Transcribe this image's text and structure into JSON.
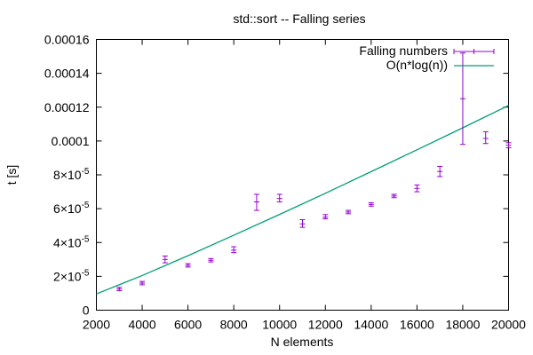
{
  "chart_data": {
    "type": "scatter",
    "title": "std::sort -- Falling series",
    "xlabel": "N elements",
    "ylabel": "t [s]",
    "xlim": [
      2000,
      20000
    ],
    "ylim": [
      0,
      0.00016
    ],
    "grid": false,
    "legend_position": "top-right",
    "x_ticks": [
      {
        "value": 2000,
        "label": "2000"
      },
      {
        "value": 4000,
        "label": "4000"
      },
      {
        "value": 6000,
        "label": "6000"
      },
      {
        "value": 8000,
        "label": "8000"
      },
      {
        "value": 10000,
        "label": "10000"
      },
      {
        "value": 12000,
        "label": "12000"
      },
      {
        "value": 14000,
        "label": "14000"
      },
      {
        "value": 16000,
        "label": "16000"
      },
      {
        "value": 18000,
        "label": "18000"
      },
      {
        "value": 20000,
        "label": "20000"
      }
    ],
    "y_ticks": [
      {
        "value": 0,
        "label": "0",
        "exp": ""
      },
      {
        "value": 2e-05,
        "label": "2×10",
        "exp": "-5"
      },
      {
        "value": 4e-05,
        "label": "4×10",
        "exp": "-5"
      },
      {
        "value": 6e-05,
        "label": "6×10",
        "exp": "-5"
      },
      {
        "value": 8e-05,
        "label": "8×10",
        "exp": "-5"
      },
      {
        "value": 0.0001,
        "label": "0.0001",
        "exp": ""
      },
      {
        "value": 0.00012,
        "label": "0.00012",
        "exp": ""
      },
      {
        "value": 0.00014,
        "label": "0.00014",
        "exp": ""
      },
      {
        "value": 0.00016,
        "label": "0.00016",
        "exp": ""
      }
    ],
    "series": [
      {
        "name": "Falling numbers",
        "kind": "errorbars",
        "color": "#9400d3",
        "points": [
          {
            "x": 3000,
            "y": 1.25e-05,
            "ylow": 1.15e-05,
            "yhigh": 1.35e-05
          },
          {
            "x": 4000,
            "y": 1.6e-05,
            "ylow": 1.5e-05,
            "yhigh": 1.7e-05
          },
          {
            "x": 5000,
            "y": 3e-05,
            "ylow": 2.8e-05,
            "yhigh": 3.2e-05
          },
          {
            "x": 6000,
            "y": 2.65e-05,
            "ylow": 2.55e-05,
            "yhigh": 2.75e-05
          },
          {
            "x": 7000,
            "y": 2.95e-05,
            "ylow": 2.85e-05,
            "yhigh": 3.05e-05
          },
          {
            "x": 8000,
            "y": 3.55e-05,
            "ylow": 3.4e-05,
            "yhigh": 3.75e-05
          },
          {
            "x": 9000,
            "y": 6.4e-05,
            "ylow": 5.9e-05,
            "yhigh": 6.85e-05
          },
          {
            "x": 10000,
            "y": 6.6e-05,
            "ylow": 6.4e-05,
            "yhigh": 6.85e-05
          },
          {
            "x": 11000,
            "y": 5.1e-05,
            "ylow": 4.9e-05,
            "yhigh": 5.35e-05
          },
          {
            "x": 12000,
            "y": 5.5e-05,
            "ylow": 5.4e-05,
            "yhigh": 5.65e-05
          },
          {
            "x": 13000,
            "y": 5.8e-05,
            "ylow": 5.7e-05,
            "yhigh": 5.9e-05
          },
          {
            "x": 14000,
            "y": 6.25e-05,
            "ylow": 6.15e-05,
            "yhigh": 6.35e-05
          },
          {
            "x": 15000,
            "y": 6.75e-05,
            "ylow": 6.65e-05,
            "yhigh": 6.85e-05
          },
          {
            "x": 16000,
            "y": 7.2e-05,
            "ylow": 7e-05,
            "yhigh": 7.4e-05
          },
          {
            "x": 17000,
            "y": 8.2e-05,
            "ylow": 7.9e-05,
            "yhigh": 8.5e-05
          },
          {
            "x": 18000,
            "y": 0.000125,
            "ylow": 9.8e-05,
            "yhigh": 0.000152
          },
          {
            "x": 19000,
            "y": 0.0001015,
            "ylow": 9.85e-05,
            "yhigh": 0.0001055
          },
          {
            "x": 20000,
            "y": 9.75e-05,
            "ylow": 9.6e-05,
            "yhigh": 9.9e-05
          }
        ]
      },
      {
        "name": "O(n*log(n))",
        "kind": "line",
        "color": "#009e73",
        "x": [
          2000,
          4000,
          6000,
          8000,
          10000,
          12000,
          14000,
          16000,
          18000,
          20000
        ],
        "y": [
          9.6e-06,
          2.05e-05,
          3.22e-05,
          4.43e-05,
          5.66e-05,
          6.91e-05,
          8.19e-05,
          9.48e-05,
          0.0001078,
          0.000121
        ]
      }
    ]
  }
}
